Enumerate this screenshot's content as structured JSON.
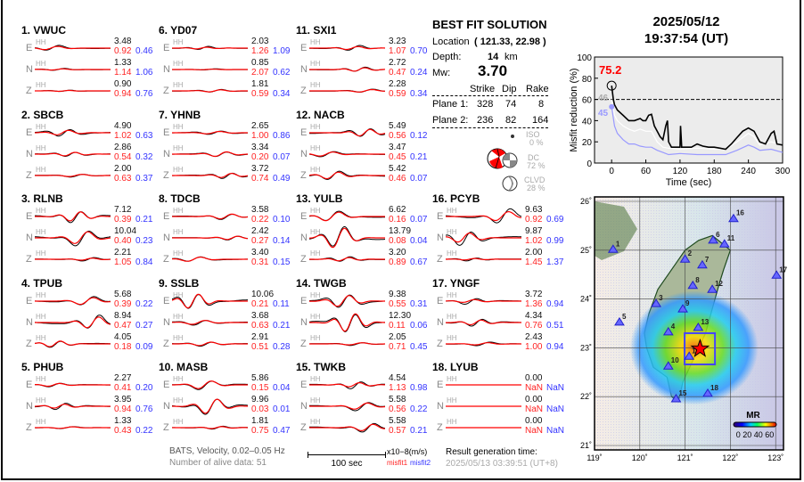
{
  "stations": [
    {
      "label": "1.  VWUC",
      "comps": [
        {
          "c": "E",
          "tag": "HH",
          "amp": "3.48",
          "m1": "0.92",
          "m2": "0.46"
        },
        {
          "c": "N",
          "tag": "HH",
          "amp": "1.33",
          "m1": "1.14",
          "m2": "1.06"
        },
        {
          "c": "Z",
          "tag": "HH",
          "amp": "0.90",
          "m1": "0.94",
          "m2": "0.76"
        }
      ]
    },
    {
      "label": "2.  SBCB",
      "comps": [
        {
          "c": "E",
          "tag": "HH",
          "amp": "4.90",
          "m1": "1.02",
          "m2": "0.63"
        },
        {
          "c": "N",
          "tag": "HH",
          "amp": "2.86",
          "m1": "0.54",
          "m2": "0.32"
        },
        {
          "c": "Z",
          "tag": "HH",
          "amp": "2.00",
          "m1": "0.63",
          "m2": "0.37"
        }
      ]
    },
    {
      "label": "3.  RLNB",
      "comps": [
        {
          "c": "E",
          "tag": "HH",
          "amp": "7.12",
          "m1": "0.39",
          "m2": "0.21"
        },
        {
          "c": "N",
          "tag": "HH",
          "amp": "10.04",
          "m1": "0.40",
          "m2": "0.23"
        },
        {
          "c": "Z",
          "tag": "HH",
          "amp": "2.21",
          "m1": "1.05",
          "m2": "0.84"
        }
      ]
    },
    {
      "label": "4.  TPUB",
      "comps": [
        {
          "c": "E",
          "tag": "HH",
          "amp": "5.68",
          "m1": "0.39",
          "m2": "0.22"
        },
        {
          "c": "N",
          "tag": "HH",
          "amp": "8.94",
          "m1": "0.47",
          "m2": "0.27"
        },
        {
          "c": "Z",
          "tag": "HH",
          "amp": "4.05",
          "m1": "0.18",
          "m2": "0.09"
        }
      ]
    },
    {
      "label": "5.  PHUB",
      "comps": [
        {
          "c": "E",
          "tag": "HH",
          "amp": "2.27",
          "m1": "0.41",
          "m2": "0.20"
        },
        {
          "c": "N",
          "tag": "HH",
          "amp": "3.95",
          "m1": "0.94",
          "m2": "0.76"
        },
        {
          "c": "Z",
          "tag": "HH",
          "amp": "1.33",
          "m1": "0.43",
          "m2": "0.22"
        }
      ]
    },
    {
      "label": "6.  YD07",
      "comps": [
        {
          "c": "E",
          "tag": "HH",
          "amp": "2.03",
          "m1": "1.26",
          "m2": "1.09"
        },
        {
          "c": "N",
          "tag": "HH",
          "amp": "0.85",
          "m1": "2.07",
          "m2": "0.62"
        },
        {
          "c": "Z",
          "tag": "HH",
          "amp": "1.81",
          "m1": "0.59",
          "m2": "0.34"
        }
      ]
    },
    {
      "label": "7.  YHNB",
      "comps": [
        {
          "c": "E",
          "tag": "HH",
          "amp": "2.65",
          "m1": "1.00",
          "m2": "0.86"
        },
        {
          "c": "N",
          "tag": "HH",
          "amp": "3.34",
          "m1": "0.20",
          "m2": "0.07"
        },
        {
          "c": "Z",
          "tag": "HH",
          "amp": "3.72",
          "m1": "0.74",
          "m2": "0.49"
        }
      ]
    },
    {
      "label": "8.  TDCB",
      "comps": [
        {
          "c": "E",
          "tag": "HH",
          "amp": "3.58",
          "m1": "0.22",
          "m2": "0.10"
        },
        {
          "c": "N",
          "tag": "HH",
          "amp": "2.42",
          "m1": "0.27",
          "m2": "0.14"
        },
        {
          "c": "Z",
          "tag": "HH",
          "amp": "3.40",
          "m1": "0.31",
          "m2": "0.15"
        }
      ]
    },
    {
      "label": "9.  SSLB",
      "comps": [
        {
          "c": "E",
          "tag": "HH",
          "amp": "10.06",
          "m1": "0.21",
          "m2": "0.11"
        },
        {
          "c": "N",
          "tag": "HH",
          "amp": "3.68",
          "m1": "0.63",
          "m2": "0.21"
        },
        {
          "c": "Z",
          "tag": "HH",
          "amp": "2.91",
          "m1": "0.51",
          "m2": "0.28"
        }
      ]
    },
    {
      "label": "10. MASB",
      "comps": [
        {
          "c": "E",
          "tag": "HH",
          "amp": "5.86",
          "m1": "0.15",
          "m2": "0.04"
        },
        {
          "c": "N",
          "tag": "HH",
          "amp": "9.96",
          "m1": "0.03",
          "m2": "0.01"
        },
        {
          "c": "Z",
          "tag": "HH",
          "amp": "1.81",
          "m1": "0.75",
          "m2": "0.47"
        }
      ]
    },
    {
      "label": "11. SXI1",
      "comps": [
        {
          "c": "E",
          "tag": "HH",
          "amp": "3.23",
          "m1": "1.07",
          "m2": "0.70"
        },
        {
          "c": "N",
          "tag": "HH",
          "amp": "2.72",
          "m1": "0.47",
          "m2": "0.24"
        },
        {
          "c": "Z",
          "tag": "HH",
          "amp": "2.28",
          "m1": "0.59",
          "m2": "0.34"
        }
      ]
    },
    {
      "label": "12. NACB",
      "comps": [
        {
          "c": "E",
          "tag": "HH",
          "amp": "5.49",
          "m1": "0.56",
          "m2": "0.12"
        },
        {
          "c": "N",
          "tag": "HH",
          "amp": "3.47",
          "m1": "0.45",
          "m2": "0.21"
        },
        {
          "c": "Z",
          "tag": "HH",
          "amp": "5.42",
          "m1": "0.46",
          "m2": "0.07"
        }
      ]
    },
    {
      "label": "13. YULB",
      "comps": [
        {
          "c": "E",
          "tag": "HH",
          "amp": "6.62",
          "m1": "0.16",
          "m2": "0.07"
        },
        {
          "c": "N",
          "tag": "HH",
          "amp": "13.79",
          "m1": "0.08",
          "m2": "0.04"
        },
        {
          "c": "Z",
          "tag": "HH",
          "amp": "3.20",
          "m1": "0.89",
          "m2": "0.67"
        }
      ]
    },
    {
      "label": "14. TWGB",
      "comps": [
        {
          "c": "E",
          "tag": "HH",
          "amp": "9.38",
          "m1": "0.55",
          "m2": "0.31"
        },
        {
          "c": "N",
          "tag": "HH",
          "amp": "12.30",
          "m1": "0.11",
          "m2": "0.06"
        },
        {
          "c": "Z",
          "tag": "HH",
          "amp": "2.05",
          "m1": "0.71",
          "m2": "0.45"
        }
      ]
    },
    {
      "label": "15. TWKB",
      "comps": [
        {
          "c": "E",
          "tag": "HH",
          "amp": "4.54",
          "m1": "1.13",
          "m2": "0.98"
        },
        {
          "c": "N",
          "tag": "HH",
          "amp": "5.58",
          "m1": "0.56",
          "m2": "0.22"
        },
        {
          "c": "Z",
          "tag": "HH",
          "amp": "5.58",
          "m1": "0.57",
          "m2": "0.21"
        }
      ]
    },
    {
      "label": "16. PCYB",
      "comps": [
        {
          "c": "E",
          "tag": "HH",
          "amp": "9.63",
          "m1": "0.92",
          "m2": "0.69"
        },
        {
          "c": "N",
          "tag": "HH",
          "amp": "9.87",
          "m1": "1.02",
          "m2": "0.99"
        },
        {
          "c": "Z",
          "tag": "HH",
          "amp": "2.00",
          "m1": "1.45",
          "m2": "1.37"
        }
      ]
    },
    {
      "label": "17. YNGF",
      "comps": [
        {
          "c": "E",
          "tag": "HH",
          "amp": "3.72",
          "m1": "1.36",
          "m2": "0.94"
        },
        {
          "c": "N",
          "tag": "HH",
          "amp": "4.34",
          "m1": "0.76",
          "m2": "0.51"
        },
        {
          "c": "Z",
          "tag": "HH",
          "amp": "2.43",
          "m1": "1.00",
          "m2": "0.94"
        }
      ]
    },
    {
      "label": "18. LYUB",
      "comps": [
        {
          "c": "E",
          "tag": "HH",
          "amp": "0.00",
          "m1": "NaN",
          "m2": "NaN"
        },
        {
          "c": "N",
          "tag": "HH",
          "amp": "0.00",
          "m1": "NaN",
          "m2": "NaN"
        },
        {
          "c": "Z",
          "tag": "HH",
          "amp": "0.00",
          "m1": "NaN",
          "m2": "NaN"
        }
      ]
    }
  ],
  "solution": {
    "title": "BEST FIT SOLUTION",
    "location_label": "Location",
    "location_value": "( 121.33,  22.98 )",
    "depth_label": "Depth:",
    "depth_value": "14",
    "depth_unit": "km",
    "mw_label": "Mw:",
    "mw_value": "3.70",
    "headers": [
      "Strike",
      "Dip",
      "Rake"
    ],
    "planes": [
      {
        "label": "Plane 1:",
        "values": [
          "328",
          "74",
          "8"
        ]
      },
      {
        "label": "Plane 2:",
        "values": [
          "236",
          "82",
          "164"
        ]
      }
    ],
    "components": [
      {
        "name": "ISO",
        "pct": "0  %"
      },
      {
        "name": "DC",
        "pct": "72 %"
      },
      {
        "name": "CLVD",
        "pct": "28 %"
      }
    ]
  },
  "footer": {
    "filter": "BATS, Velocity, 0.02–0.05 Hz",
    "alive": "Number of alive data: 51",
    "scale_label": "100 sec",
    "unit": "x10−8(m/s)",
    "misfit1": "misfit1",
    "misfit2": "misfit2",
    "result_label": "Result generation time:",
    "result_time": "2025/05/13 03:39:51 (UT+8)"
  },
  "header": {
    "date": "2025/05/12",
    "time": "19:37:54  (UT)"
  },
  "colors": {
    "observed": "#000000",
    "synthetic": "#ff0000",
    "misfit1": "#ff2222",
    "misfit2": "#3333ff",
    "best_series": "#000000",
    "mid_series": "#ffffff",
    "low_series": "#9999ff"
  },
  "chart_data": {
    "type": "line",
    "xlabel": "Time (sec)",
    "ylabel": "Misfit reduction (%)",
    "xlim": [
      -30,
      300
    ],
    "ylim": [
      0,
      100
    ],
    "xticks": [
      0,
      60,
      120,
      180,
      240,
      300
    ],
    "yticks": [
      0,
      20,
      40,
      60,
      80,
      100
    ],
    "threshold": 60,
    "annotations": {
      "best": "75.2",
      "mid": "46",
      "low": "45"
    },
    "series": [
      {
        "color": "#000000",
        "x": [
          0,
          3,
          5,
          10,
          20,
          30,
          40,
          50,
          55,
          60,
          65,
          70,
          75,
          80,
          85,
          90,
          95,
          98,
          100,
          105,
          110,
          120,
          121,
          123,
          130,
          140,
          150,
          160,
          170,
          180,
          190,
          200,
          210,
          220,
          230,
          240,
          250,
          260,
          270,
          280,
          285,
          290,
          300
        ],
        "y": [
          73,
          60,
          55,
          50,
          45,
          40,
          40,
          42,
          40,
          40,
          45,
          46,
          35,
          30,
          25,
          22,
          35,
          40,
          20,
          15,
          15,
          15,
          35,
          15,
          15,
          15,
          18,
          16,
          15,
          15,
          14,
          13,
          18,
          24,
          30,
          33,
          30,
          20,
          18,
          28,
          30,
          18,
          17
        ]
      },
      {
        "color": "#ffffff",
        "x": [
          0,
          5,
          10,
          20,
          30,
          40,
          50,
          60,
          70,
          80,
          90,
          100,
          120,
          150,
          180,
          200,
          220,
          240,
          250,
          260,
          280,
          300
        ],
        "y": [
          60,
          45,
          40,
          35,
          32,
          30,
          32,
          30,
          30,
          20,
          15,
          14,
          13,
          14,
          13,
          13,
          20,
          28,
          25,
          17,
          20,
          17
        ]
      },
      {
        "color": "#9999ff",
        "x": [
          0,
          5,
          10,
          20,
          30,
          40,
          50,
          60,
          70,
          80,
          90,
          100,
          120,
          150,
          180,
          200,
          220,
          240,
          250,
          260,
          280,
          300
        ],
        "y": [
          53,
          35,
          28,
          22,
          18,
          18,
          16,
          15,
          15,
          12,
          10,
          8,
          9,
          8,
          8,
          8,
          12,
          17,
          15,
          12,
          13,
          10
        ]
      }
    ]
  },
  "map": {
    "lon_ticks": [
      "119˚",
      "120˚",
      "121˚",
      "122˚",
      "123˚"
    ],
    "lat_ticks": [
      "21˚",
      "22˚",
      "23˚",
      "24˚",
      "25˚",
      "26˚"
    ],
    "colorbar_title": "MR",
    "colorbar_labels": "0 20 40 60",
    "epicenter": {
      "lon": 121.33,
      "lat": 22.98
    },
    "stations": [
      {
        "n": "1",
        "lon": 119.41,
        "lat": 25.01
      },
      {
        "n": "2",
        "lon": 121.0,
        "lat": 24.81
      },
      {
        "n": "3",
        "lon": 120.36,
        "lat": 23.9
      },
      {
        "n": "4",
        "lon": 120.63,
        "lat": 23.32
      },
      {
        "n": "5",
        "lon": 119.55,
        "lat": 23.52
      },
      {
        "n": "6",
        "lon": 121.62,
        "lat": 25.2
      },
      {
        "n": "7",
        "lon": 121.38,
        "lat": 24.69
      },
      {
        "n": "8",
        "lon": 121.17,
        "lat": 24.27
      },
      {
        "n": "9",
        "lon": 120.95,
        "lat": 23.79
      },
      {
        "n": "10",
        "lon": 120.63,
        "lat": 22.62
      },
      {
        "n": "11",
        "lon": 121.87,
        "lat": 25.12
      },
      {
        "n": "12",
        "lon": 121.6,
        "lat": 24.19
      },
      {
        "n": "13",
        "lon": 121.29,
        "lat": 23.41
      },
      {
        "n": "14",
        "lon": 121.09,
        "lat": 22.82
      },
      {
        "n": "15",
        "lon": 120.8,
        "lat": 21.95
      },
      {
        "n": "16",
        "lon": 122.07,
        "lat": 25.64
      },
      {
        "n": "17",
        "lon": 123.02,
        "lat": 24.48
      },
      {
        "n": "18",
        "lon": 121.5,
        "lat": 22.06
      }
    ]
  }
}
